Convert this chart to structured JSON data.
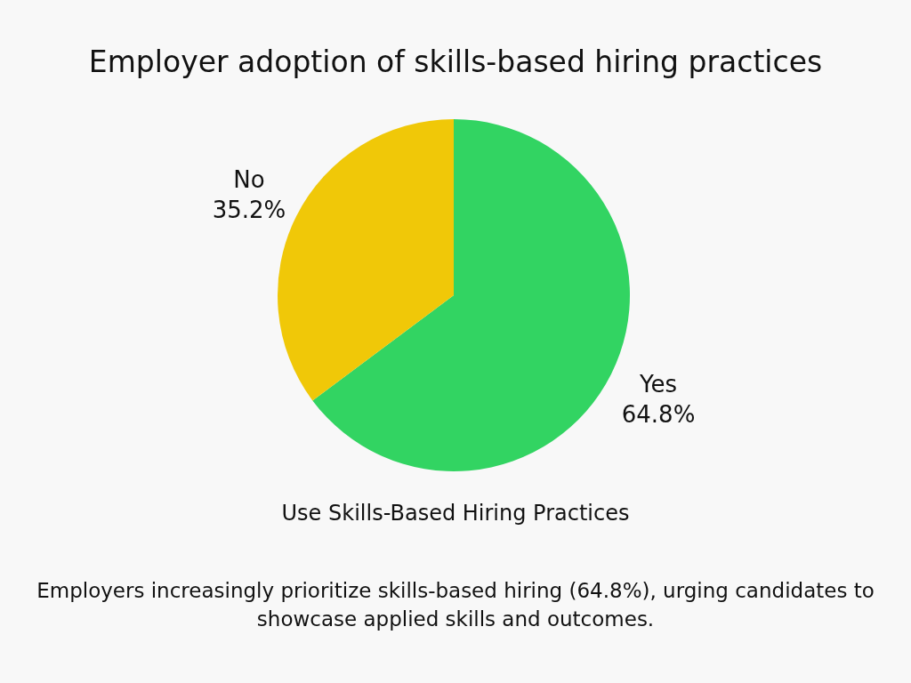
{
  "chart_data": {
    "type": "pie",
    "title": "Employer adoption of skills-based hiring practices",
    "xlabel": "Use Skills-Based Hiring Practices",
    "categories": [
      "Yes",
      "No"
    ],
    "values": [
      64.8,
      35.2
    ],
    "colors": [
      "#32d462",
      "#f0c808"
    ],
    "value_labels": [
      "64.8%",
      "35.2%"
    ],
    "legend": false,
    "annotations": [
      "Employers increasingly prioritize skills-based hiring (64.8%), urging candidates to showcase applied skills and outcomes."
    ]
  }
}
